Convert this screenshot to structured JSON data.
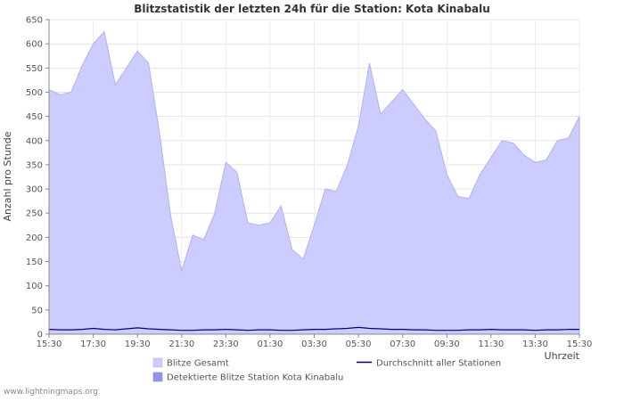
{
  "page": {
    "watermark": "www.lightningmaps.org"
  },
  "chart_data": {
    "type": "area",
    "title": "Blitzstatistik der letzten 24h für die Station: Kota Kinabalu",
    "ylabel": "Anzahl pro Stunde",
    "xlabel": "Uhrzeit",
    "ylim": [
      0,
      650
    ],
    "y_tick_step": 50,
    "grid": true,
    "legend_position": "bottom",
    "x_tick_labels": [
      "15:30",
      "17:30",
      "19:30",
      "21:30",
      "23:30",
      "01:30",
      "03:30",
      "05:30",
      "07:30",
      "09:30",
      "11:30",
      "13:30",
      "15:30"
    ],
    "x": [
      "15:30",
      "16:00",
      "16:30",
      "17:00",
      "17:30",
      "18:00",
      "18:30",
      "19:00",
      "19:30",
      "20:00",
      "20:30",
      "21:00",
      "21:30",
      "22:00",
      "22:30",
      "23:00",
      "23:30",
      "00:00",
      "00:30",
      "01:00",
      "01:30",
      "02:00",
      "02:30",
      "03:00",
      "03:30",
      "04:00",
      "04:30",
      "05:00",
      "05:30",
      "06:00",
      "06:30",
      "07:00",
      "07:30",
      "08:00",
      "08:30",
      "09:00",
      "09:30",
      "10:00",
      "10:30",
      "11:00",
      "11:30",
      "12:00",
      "12:30",
      "13:00",
      "13:30",
      "14:00",
      "14:30",
      "15:00",
      "15:30"
    ],
    "series": [
      {
        "name": "Blitze Gesamt",
        "type": "area",
        "color": "#ccccff",
        "values": [
          505,
          495,
          500,
          555,
          600,
          625,
          515,
          550,
          585,
          560,
          415,
          245,
          130,
          205,
          195,
          250,
          355,
          335,
          230,
          225,
          230,
          265,
          175,
          155,
          225,
          300,
          295,
          350,
          430,
          560,
          455,
          480,
          505,
          475,
          445,
          420,
          330,
          285,
          280,
          330,
          365,
          400,
          395,
          370,
          355,
          360,
          400,
          405,
          450
        ]
      },
      {
        "name": "Detektierte Blitze Station Kota Kinabalu",
        "type": "area",
        "color": "#9494ea",
        "values": [
          0,
          0,
          0,
          0,
          0,
          0,
          0,
          0,
          0,
          0,
          0,
          0,
          0,
          0,
          0,
          0,
          0,
          0,
          0,
          0,
          0,
          0,
          0,
          0,
          0,
          0,
          0,
          0,
          0,
          0,
          0,
          0,
          0,
          0,
          0,
          0,
          0,
          0,
          0,
          0,
          0,
          0,
          0,
          0,
          0,
          0,
          0,
          0,
          0
        ]
      },
      {
        "name": "Durchschnitt aller Stationen",
        "type": "line",
        "color": "#000080",
        "values": [
          10,
          9,
          9,
          10,
          12,
          10,
          9,
          11,
          13,
          11,
          10,
          9,
          8,
          8,
          9,
          9,
          10,
          9,
          8,
          9,
          9,
          8,
          8,
          9,
          10,
          10,
          11,
          12,
          14,
          12,
          11,
          10,
          10,
          9,
          9,
          8,
          8,
          8,
          9,
          9,
          10,
          9,
          9,
          9,
          8,
          9,
          9,
          10,
          10
        ]
      }
    ]
  }
}
